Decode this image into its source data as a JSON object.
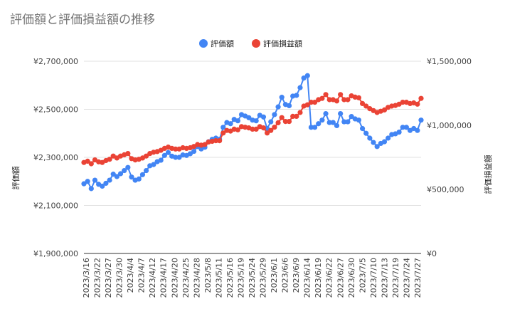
{
  "chart_data": {
    "type": "line",
    "title": "評価額と評価損益額の推移",
    "y_left_label": "評価額",
    "y_right_label": "評価損益額",
    "y_left_range": [
      1900000,
      2700000
    ],
    "y_right_range": [
      0,
      1500000
    ],
    "y_left_ticks": [
      "¥2,700,000",
      "¥2,500,000",
      "¥2,300,000",
      "¥2,100,000",
      "¥1,900,000"
    ],
    "y_right_ticks": [
      "¥1,500,000",
      "¥1,000,000",
      "¥500,000",
      "¥0"
    ],
    "legend_position": "top",
    "grid": true,
    "x_tick_labels": [
      "2023/3/16",
      "2023/3/22",
      "2023/3/27",
      "2023/3/30",
      "2023/4/4",
      "2023/4/7",
      "2023/4/12",
      "2023/4/17",
      "2023/4/20",
      "2023/4/25",
      "2023/4/28",
      "2023/5/8",
      "2023/5/11",
      "2023/5/16",
      "2023/5/19",
      "2023/5/24",
      "2023/5/29",
      "2023/6/1",
      "2023/6/6",
      "2023/6/9",
      "2023/6/14",
      "2023/6/19",
      "2023/6/22",
      "2023/6/27",
      "2023/6/30",
      "2023/7/5",
      "2023/7/10",
      "2023/7/13",
      "2023/7/19",
      "2023/7/24",
      "2023/7/27"
    ],
    "series": [
      {
        "name": "評価額",
        "axis": "left",
        "color": "#4285f4",
        "values": [
          2190000,
          2200000,
          2170000,
          2205000,
          2188000,
          2180000,
          2192000,
          2205000,
          2230000,
          2220000,
          2232000,
          2245000,
          2258000,
          2218000,
          2205000,
          2210000,
          2228000,
          2245000,
          2265000,
          2270000,
          2282000,
          2288000,
          2308000,
          2320000,
          2305000,
          2300000,
          2300000,
          2310000,
          2308000,
          2315000,
          2325000,
          2345000,
          2335000,
          2342000,
          2365000,
          2375000,
          2380000,
          2375000,
          2425000,
          2445000,
          2440000,
          2458000,
          2452000,
          2478000,
          2472000,
          2465000,
          2455000,
          2452000,
          2475000,
          2468000,
          2420000,
          2448000,
          2478000,
          2510000,
          2550000,
          2520000,
          2515000,
          2555000,
          2558000,
          2590000,
          2630000,
          2640000,
          2425000,
          2425000,
          2440000,
          2455000,
          2482000,
          2445000,
          2445000,
          2432000,
          2482000,
          2448000,
          2448000,
          2470000,
          2460000,
          2455000,
          2420000,
          2400000,
          2380000,
          2362000,
          2345000,
          2358000,
          2365000,
          2380000,
          2395000,
          2398000,
          2405000,
          2425000,
          2425000,
          2412000,
          2420000,
          2412000,
          2455000
        ]
      },
      {
        "name": "評価損益額",
        "axis": "right",
        "color": "#ea4335",
        "values": [
          710000,
          720000,
          700000,
          730000,
          715000,
          710000,
          725000,
          735000,
          760000,
          745000,
          760000,
          770000,
          780000,
          740000,
          730000,
          735000,
          745000,
          760000,
          780000,
          790000,
          795000,
          805000,
          820000,
          830000,
          820000,
          815000,
          815000,
          825000,
          820000,
          825000,
          835000,
          850000,
          845000,
          850000,
          870000,
          875000,
          880000,
          880000,
          940000,
          960000,
          955000,
          970000,
          965000,
          990000,
          985000,
          980000,
          970000,
          970000,
          990000,
          980000,
          940000,
          960000,
          985000,
          1020000,
          1060000,
          1030000,
          1030000,
          1070000,
          1070000,
          1100000,
          1150000,
          1160000,
          1180000,
          1180000,
          1200000,
          1210000,
          1240000,
          1200000,
          1200000,
          1190000,
          1240000,
          1200000,
          1200000,
          1230000,
          1220000,
          1215000,
          1170000,
          1150000,
          1130000,
          1115000,
          1100000,
          1110000,
          1120000,
          1140000,
          1150000,
          1155000,
          1165000,
          1180000,
          1180000,
          1170000,
          1175000,
          1165000,
          1210000
        ]
      }
    ]
  }
}
